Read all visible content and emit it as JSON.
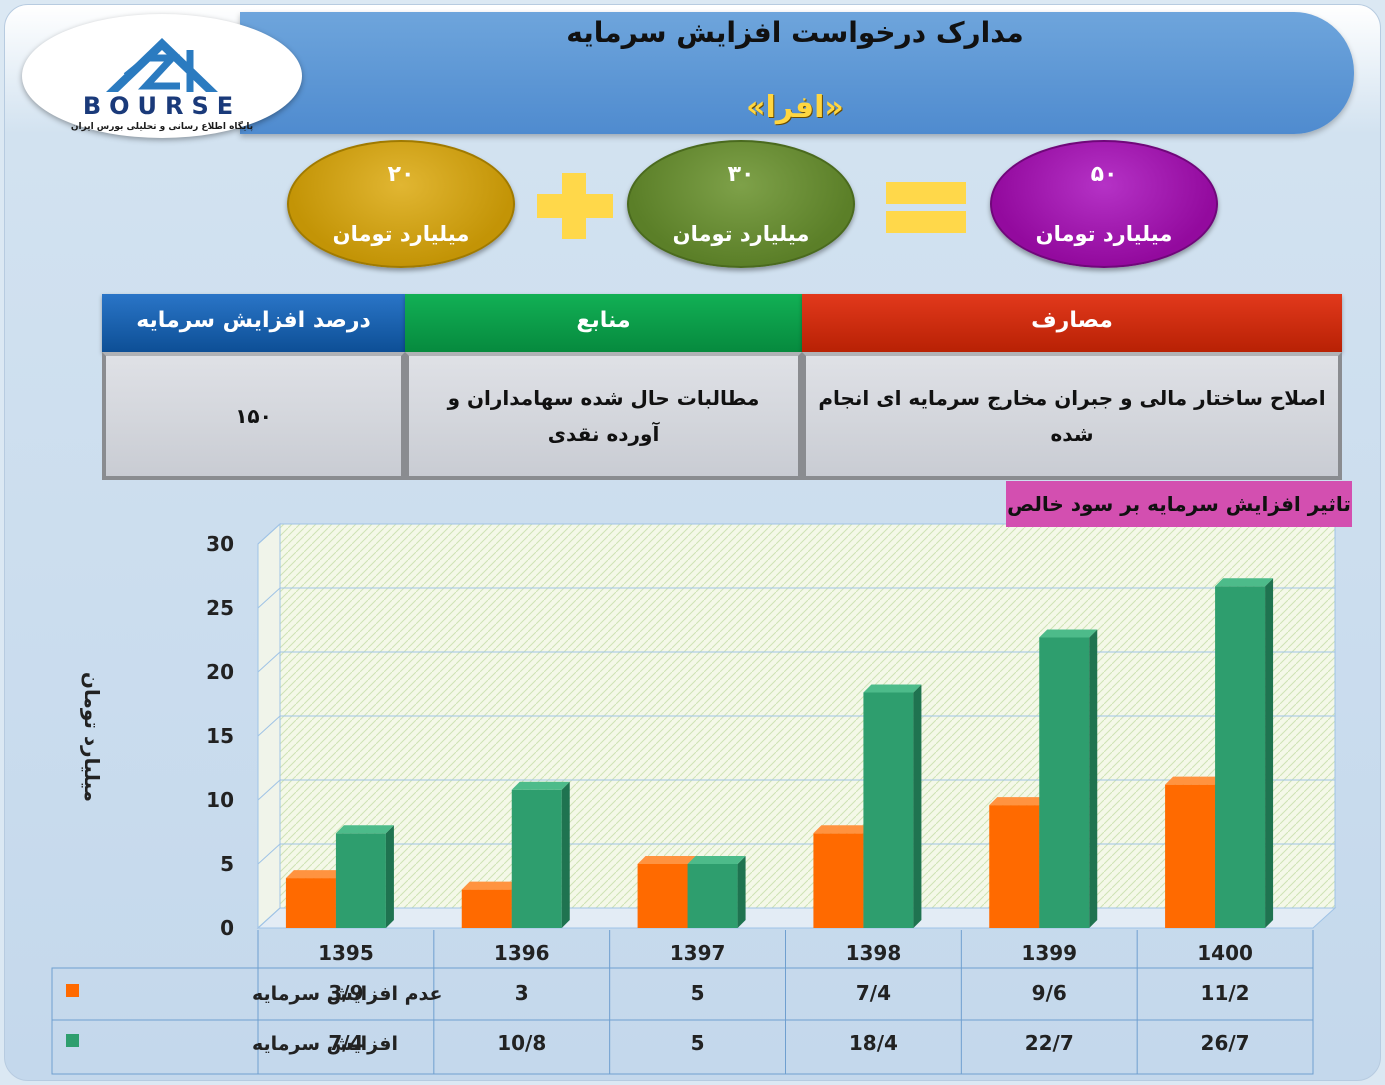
{
  "header": {
    "title": "مدارک درخواست افزایش سرمایه",
    "subtitle": "«افرا»"
  },
  "logo": {
    "wordmark": "BOURSE",
    "tagline": "پایگاه اطلاع رسانی و تحلیلی بورس ایران"
  },
  "equation": {
    "left": {
      "amount": "۲۰",
      "unit": "میلیارد تومان",
      "color": "#c79a0c"
    },
    "middle": {
      "amount": "۳۰",
      "unit": "میلیارد تومان",
      "color": "#628632"
    },
    "right": {
      "amount": "۵۰",
      "unit": "میلیارد تومان",
      "color": "#9a12a6"
    },
    "plus_icon": "plus-sign",
    "equals_icon": "equals-sign"
  },
  "info_table": {
    "headers": {
      "percent": "درصد افزایش سرمایه",
      "sources": "منابع",
      "uses": "مصارف"
    },
    "values": {
      "percent": "۱۵۰",
      "sources": "مطالبات حال شده سهامداران و آورده نقدی",
      "uses": "اصلاح ساختار مالی و جبران مخارج سرمایه ای انجام شده"
    }
  },
  "chart_data": {
    "type": "bar",
    "title": "تاثیر افزایش سرمایه بر سود خالص",
    "ylabel": "میلیارد تومان",
    "xlabel": "",
    "ylim": [
      0,
      30
    ],
    "yticks": [
      0,
      5,
      10,
      15,
      20,
      25,
      30
    ],
    "grid": true,
    "categories": [
      "1395",
      "1396",
      "1397",
      "1398",
      "1399",
      "1400"
    ],
    "series": [
      {
        "name": "عدم افزایش سرمایه",
        "color": "#ff6a00",
        "values": [
          3.9,
          3,
          5,
          7.4,
          9.6,
          11.2
        ],
        "labels": [
          "3/9",
          "3",
          "5",
          "7/4",
          "9/6",
          "11/2"
        ]
      },
      {
        "name": "افزایش سرمایه",
        "color": "#2e9e6e",
        "values": [
          7.4,
          10.8,
          5,
          18.4,
          22.7,
          26.7
        ],
        "labels": [
          "7/4",
          "10/8",
          "5",
          "18/4",
          "22/7",
          "26/7"
        ]
      }
    ]
  }
}
